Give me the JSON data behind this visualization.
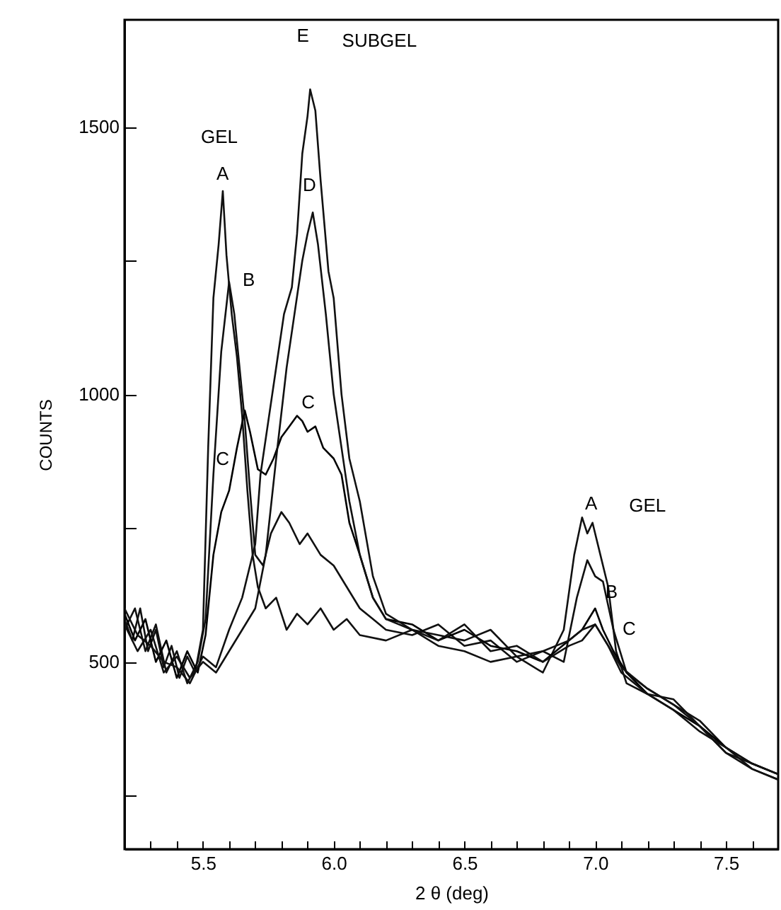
{
  "chart_data": {
    "type": "line",
    "xlabel": "2 θ (deg)",
    "ylabel": "COUNTS",
    "xlim": [
      5.2,
      7.7
    ],
    "ylim": [
      150,
      1700
    ],
    "xticks": [
      {
        "value": 5.3,
        "label": null
      },
      {
        "value": 5.4,
        "label": null
      },
      {
        "value": 5.5,
        "label": "5.5"
      },
      {
        "value": 5.6,
        "label": null
      },
      {
        "value": 5.7,
        "label": null
      },
      {
        "value": 5.8,
        "label": null
      },
      {
        "value": 5.9,
        "label": null
      },
      {
        "value": 6,
        "label": "6.0"
      },
      {
        "value": 6.1,
        "label": null
      },
      {
        "value": 6.2,
        "label": null
      },
      {
        "value": 6.3,
        "label": null
      },
      {
        "value": 6.4,
        "label": null
      },
      {
        "value": 6.5,
        "label": "6.5"
      },
      {
        "value": 6.6,
        "label": null
      },
      {
        "value": 6.7,
        "label": null
      },
      {
        "value": 6.8,
        "label": null
      },
      {
        "value": 6.9,
        "label": null
      },
      {
        "value": 7,
        "label": "7.0"
      },
      {
        "value": 7.1,
        "label": null
      },
      {
        "value": 7.2,
        "label": null
      },
      {
        "value": 7.3,
        "label": null
      },
      {
        "value": 7.4,
        "label": null
      },
      {
        "value": 7.5,
        "label": "7.5"
      },
      {
        "value": 7.6,
        "label": null
      }
    ],
    "yticks": [
      {
        "value": 250,
        "label": null
      },
      500,
      {
        "value": 750,
        "label": null
      },
      1000,
      {
        "value": 1250,
        "label": null
      },
      1500
    ],
    "grid": false,
    "legend": false,
    "marker": "none",
    "line_style": "solid",
    "series": [
      {
        "color": "#111111",
        "x": [
          5.2,
          5.23,
          5.26,
          5.29,
          5.32,
          5.35,
          5.38,
          5.41,
          5.44,
          5.47,
          5.5,
          5.52,
          5.54,
          5.56,
          5.576,
          5.59,
          5.61,
          5.63,
          5.65,
          5.67,
          5.69,
          5.71,
          5.74,
          5.78,
          5.82,
          5.86,
          5.9,
          5.95,
          6.0,
          6.05,
          6.1,
          6.2,
          6.3,
          6.4,
          6.5,
          6.6,
          6.7,
          6.8,
          6.88,
          6.92,
          6.95,
          6.97,
          6.99,
          7.02,
          7.05,
          7.08,
          7.12,
          7.2,
          7.3,
          7.4,
          7.5,
          7.6,
          7.7
        ],
        "values": [
          580,
          540,
          600,
          520,
          560,
          490,
          530,
          470,
          510,
          480,
          560,
          900,
          1180,
          1280,
          1380,
          1260,
          1150,
          1070,
          960,
          820,
          700,
          640,
          600,
          620,
          560,
          590,
          570,
          600,
          560,
          580,
          550,
          540,
          560,
          530,
          520,
          500,
          510,
          480,
          560,
          700,
          770,
          740,
          760,
          700,
          640,
          520,
          460,
          440,
          430,
          380,
          330,
          310,
          290
        ]
      },
      {
        "color": "#111111",
        "x": [
          5.2,
          5.24,
          5.28,
          5.32,
          5.36,
          5.4,
          5.44,
          5.48,
          5.51,
          5.54,
          5.57,
          5.6,
          5.62,
          5.64,
          5.66,
          5.68,
          5.7,
          5.73,
          5.76,
          5.8,
          5.83,
          5.87,
          5.9,
          5.95,
          6.0,
          6.05,
          6.1,
          6.15,
          6.2,
          6.3,
          6.4,
          6.5,
          6.6,
          6.7,
          6.8,
          6.88,
          6.93,
          6.97,
          7.0,
          7.03,
          7.07,
          7.12,
          7.2,
          7.3,
          7.4,
          7.5,
          7.6,
          7.7
        ],
        "values": [
          560,
          600,
          520,
          570,
          480,
          520,
          460,
          500,
          580,
          850,
          1080,
          1210,
          1150,
          1050,
          950,
          820,
          700,
          680,
          740,
          780,
          760,
          720,
          740,
          700,
          680,
          640,
          600,
          580,
          560,
          550,
          570,
          530,
          540,
          500,
          520,
          500,
          620,
          690,
          660,
          650,
          560,
          480,
          450,
          420,
          390,
          340,
          300,
          280
        ]
      },
      {
        "color": "#000000",
        "x": [
          5.2,
          5.24,
          5.28,
          5.32,
          5.36,
          5.4,
          5.44,
          5.48,
          5.51,
          5.54,
          5.57,
          5.6,
          5.63,
          5.66,
          5.68,
          5.71,
          5.74,
          5.77,
          5.8,
          5.83,
          5.86,
          5.88,
          5.9,
          5.93,
          5.96,
          6.0,
          6.03,
          6.06,
          6.1,
          6.15,
          6.2,
          6.3,
          6.4,
          6.5,
          6.6,
          6.7,
          6.8,
          6.9,
          6.95,
          7.0,
          7.03,
          7.07,
          7.12,
          7.2,
          7.3,
          7.4,
          7.5,
          7.6,
          7.7
        ],
        "values": [
          590,
          540,
          580,
          500,
          540,
          470,
          520,
          480,
          550,
          700,
          780,
          820,
          900,
          970,
          930,
          860,
          850,
          880,
          920,
          940,
          960,
          950,
          930,
          940,
          900,
          880,
          850,
          760,
          700,
          620,
          580,
          570,
          540,
          560,
          530,
          520,
          500,
          540,
          560,
          600,
          560,
          520,
          480,
          440,
          410,
          380,
          340,
          310,
          290
        ]
      },
      {
        "color": "#111111",
        "x": [
          5.2,
          5.25,
          5.3,
          5.35,
          5.4,
          5.45,
          5.5,
          5.55,
          5.6,
          5.65,
          5.7,
          5.74,
          5.78,
          5.82,
          5.85,
          5.88,
          5.9,
          5.92,
          5.94,
          5.97,
          6.0,
          6.03,
          6.06,
          6.1,
          6.15,
          6.2,
          6.3,
          6.4,
          6.5,
          6.6,
          6.7,
          6.8,
          6.9,
          6.95,
          7.0,
          7.05,
          7.1,
          7.2,
          7.3,
          7.4,
          7.5,
          7.6,
          7.7
        ],
        "values": [
          570,
          520,
          560,
          480,
          510,
          470,
          500,
          480,
          520,
          560,
          600,
          700,
          880,
          1050,
          1150,
          1250,
          1300,
          1340,
          1280,
          1150,
          1000,
          900,
          800,
          700,
          620,
          580,
          560,
          540,
          570,
          520,
          530,
          500,
          530,
          540,
          570,
          530,
          490,
          450,
          420,
          380,
          330,
          300,
          280
        ]
      },
      {
        "color": "#111111",
        "x": [
          5.2,
          5.25,
          5.3,
          5.35,
          5.4,
          5.45,
          5.5,
          5.55,
          5.6,
          5.65,
          5.7,
          5.72,
          5.75,
          5.78,
          5.81,
          5.84,
          5.86,
          5.88,
          5.9,
          5.91,
          5.93,
          5.95,
          5.98,
          6.0,
          6.03,
          6.06,
          6.1,
          6.15,
          6.2,
          6.3,
          6.4,
          6.5,
          6.6,
          6.7,
          6.8,
          6.9,
          6.95,
          7.0,
          7.05,
          7.1,
          7.2,
          7.3,
          7.4,
          7.5,
          7.6,
          7.7
        ],
        "values": [
          600,
          550,
          530,
          500,
          490,
          460,
          510,
          490,
          560,
          620,
          720,
          850,
          950,
          1050,
          1150,
          1200,
          1300,
          1450,
          1520,
          1570,
          1530,
          1400,
          1230,
          1180,
          1000,
          880,
          800,
          660,
          590,
          560,
          550,
          540,
          560,
          510,
          520,
          540,
          560,
          570,
          530,
          480,
          440,
          410,
          370,
          340,
          310,
          290
        ]
      }
    ],
    "annotations": [
      "GEL",
      "A",
      "B",
      "C",
      "E",
      "SUBGEL",
      "D",
      "C",
      "A",
      "GEL",
      "B",
      "C"
    ]
  }
}
